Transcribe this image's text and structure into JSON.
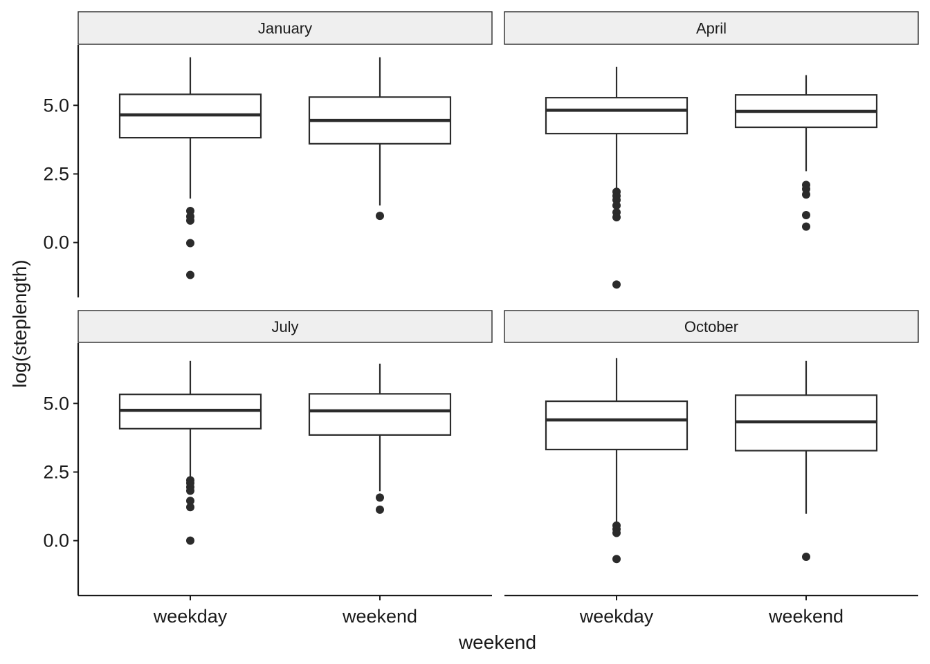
{
  "chart_data": {
    "type": "boxplot",
    "xlabel": "weekend",
    "ylabel": "log(steplength)",
    "categories": [
      "weekday",
      "weekend"
    ],
    "ylim": [
      -2.0,
      7.2
    ],
    "yticks": [
      0.0,
      2.5,
      5.0
    ],
    "ytick_labels": [
      "0.0",
      "2.5",
      "5.0"
    ],
    "facets": [
      {
        "label": "January",
        "boxes": [
          {
            "category": "weekday",
            "lower": 1.6,
            "q1": 3.82,
            "median": 4.65,
            "q3": 5.4,
            "upper": 6.75,
            "outliers": [
              1.15,
              0.95,
              0.8,
              -0.02,
              -1.18
            ]
          },
          {
            "category": "weekend",
            "lower": 1.35,
            "q1": 3.6,
            "median": 4.45,
            "q3": 5.3,
            "upper": 6.75,
            "outliers": [
              0.97
            ]
          }
        ]
      },
      {
        "label": "April",
        "boxes": [
          {
            "category": "weekday",
            "lower": 1.95,
            "q1": 3.97,
            "median": 4.82,
            "q3": 5.28,
            "upper": 6.4,
            "outliers": [
              1.85,
              1.7,
              1.55,
              1.35,
              1.1,
              0.92,
              -1.53
            ]
          },
          {
            "category": "weekend",
            "lower": 2.6,
            "q1": 4.2,
            "median": 4.78,
            "q3": 5.38,
            "upper": 6.1,
            "outliers": [
              2.1,
              1.95,
              1.75,
              1.0,
              0.58
            ]
          }
        ]
      },
      {
        "label": "July",
        "boxes": [
          {
            "category": "weekday",
            "lower": 2.3,
            "q1": 4.08,
            "median": 4.75,
            "q3": 5.33,
            "upper": 6.55,
            "outliers": [
              2.2,
              2.1,
              1.95,
              1.82,
              1.45,
              1.22,
              0.0
            ]
          },
          {
            "category": "weekend",
            "lower": 1.8,
            "q1": 3.85,
            "median": 4.73,
            "q3": 5.35,
            "upper": 6.45,
            "outliers": [
              1.57,
              1.13
            ]
          }
        ]
      },
      {
        "label": "October",
        "boxes": [
          {
            "category": "weekday",
            "lower": 0.65,
            "q1": 3.32,
            "median": 4.4,
            "q3": 5.08,
            "upper": 6.65,
            "outliers": [
              0.55,
              0.42,
              0.28,
              -0.67
            ]
          },
          {
            "category": "weekend",
            "lower": 0.98,
            "q1": 3.28,
            "median": 4.33,
            "q3": 5.3,
            "upper": 6.55,
            "outliers": [
              -0.59
            ]
          }
        ]
      }
    ]
  }
}
